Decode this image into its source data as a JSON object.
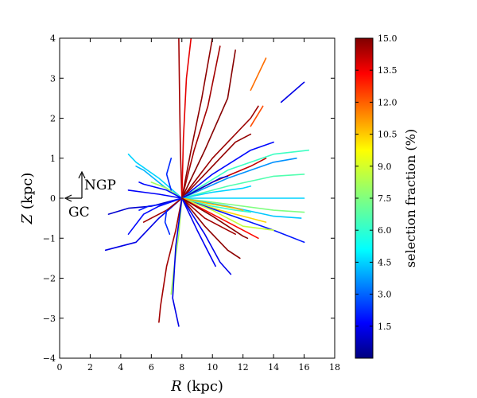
{
  "chart_data": {
    "type": "line",
    "title": "",
    "xlabel_italic": "R",
    "xlabel_unit": " (kpc)",
    "ylabel_italic": "Z",
    "ylabel_unit": " (kpc)",
    "xlim": [
      0,
      18
    ],
    "ylim": [
      -4,
      4
    ],
    "xticks": [
      "0",
      "2",
      "4",
      "6",
      "8",
      "10",
      "12",
      "14",
      "16",
      "18"
    ],
    "yticks": [
      "−4",
      "−3",
      "−2",
      "−1",
      "0",
      "1",
      "2",
      "3",
      "4"
    ],
    "sun_position": {
      "R": 8.0,
      "Z": 0.0
    },
    "annotations": {
      "north": "NGP",
      "center": "GC"
    },
    "colorbar": {
      "label": "selection fraction (%)",
      "min": 0.0,
      "max": 15.0,
      "ticks": [
        "1.5",
        "3.0",
        "4.5",
        "6.0",
        "7.5",
        "9.0",
        "10.5",
        "12.0",
        "13.5",
        "15.0"
      ]
    },
    "series": [
      {
        "name": "sightline-01",
        "selection_fraction": 14.5,
        "points": [
          [
            8.0,
            0.0
          ],
          [
            7.9,
            1.2
          ],
          [
            7.85,
            2.5
          ],
          [
            7.8,
            4.0
          ]
        ]
      },
      {
        "name": "sightline-02",
        "selection_fraction": 13.5,
        "points": [
          [
            8.0,
            0.0
          ],
          [
            8.1,
            1.5
          ],
          [
            8.3,
            3.0
          ],
          [
            8.6,
            4.0
          ]
        ]
      },
      {
        "name": "sightline-03",
        "selection_fraction": 14.8,
        "points": [
          [
            8.0,
            0.0
          ],
          [
            8.6,
            1.2
          ],
          [
            9.3,
            2.5
          ],
          [
            10.0,
            4.0
          ]
        ]
      },
      {
        "name": "sightline-04",
        "selection_fraction": 14.5,
        "points": [
          [
            8.0,
            0.0
          ],
          [
            8.8,
            1.2
          ],
          [
            9.7,
            2.3
          ],
          [
            10.5,
            3.8
          ]
        ]
      },
      {
        "name": "sightline-05",
        "selection_fraction": 14.9,
        "points": [
          [
            8.0,
            0.0
          ],
          [
            9.5,
            1.2
          ],
          [
            11.0,
            2.5
          ],
          [
            11.5,
            3.7
          ]
        ]
      },
      {
        "name": "sightline-06",
        "selection_fraction": 14.6,
        "points": [
          [
            8.0,
            0.0
          ],
          [
            10.0,
            1.0
          ],
          [
            12.5,
            2.0
          ],
          [
            13.0,
            2.3
          ]
        ]
      },
      {
        "name": "sightline-07",
        "selection_fraction": 11.5,
        "points": [
          [
            12.5,
            2.7
          ],
          [
            13.5,
            3.5
          ]
        ]
      },
      {
        "name": "sightline-08",
        "selection_fraction": 12.0,
        "points": [
          [
            12.5,
            1.8
          ],
          [
            13.3,
            2.3
          ]
        ]
      },
      {
        "name": "sightline-09",
        "selection_fraction": 1.5,
        "points": [
          [
            14.5,
            2.4
          ],
          [
            16.0,
            2.9
          ]
        ]
      },
      {
        "name": "sightline-10",
        "selection_fraction": 14.7,
        "points": [
          [
            8.0,
            0.0
          ],
          [
            9.5,
            0.6
          ],
          [
            11.5,
            1.4
          ],
          [
            12.5,
            1.6
          ]
        ]
      },
      {
        "name": "sightline-11",
        "selection_fraction": 2.0,
        "points": [
          [
            8.0,
            0.0
          ],
          [
            10.0,
            0.6
          ],
          [
            12.5,
            1.2
          ],
          [
            14.0,
            1.4
          ]
        ]
      },
      {
        "name": "sightline-12",
        "selection_fraction": 6.5,
        "points": [
          [
            8.0,
            0.0
          ],
          [
            11.0,
            0.7
          ],
          [
            14.0,
            1.1
          ],
          [
            16.3,
            1.2
          ]
        ]
      },
      {
        "name": "sightline-13",
        "selection_fraction": 4.0,
        "points": [
          [
            8.0,
            0.0
          ],
          [
            11.0,
            0.5
          ],
          [
            14.0,
            0.9
          ],
          [
            15.5,
            1.0
          ]
        ]
      },
      {
        "name": "sightline-14",
        "selection_fraction": 14.0,
        "points": [
          [
            8.0,
            0.0
          ],
          [
            10.0,
            0.4
          ],
          [
            12.5,
            0.8
          ],
          [
            13.5,
            1.0
          ]
        ]
      },
      {
        "name": "sightline-15",
        "selection_fraction": 6.8,
        "points": [
          [
            8.0,
            0.0
          ],
          [
            11.0,
            0.3
          ],
          [
            14.0,
            0.55
          ],
          [
            16.0,
            0.6
          ]
        ]
      },
      {
        "name": "sightline-16",
        "selection_fraction": 5.0,
        "points": [
          [
            8.0,
            0.0
          ],
          [
            10.0,
            0.15
          ],
          [
            12.0,
            0.25
          ],
          [
            12.5,
            0.3
          ]
        ]
      },
      {
        "name": "sightline-17",
        "selection_fraction": 5.0,
        "points": [
          [
            8.0,
            0.0
          ],
          [
            11.0,
            0.0
          ],
          [
            14.0,
            0.0
          ],
          [
            16.0,
            0.0
          ]
        ]
      },
      {
        "name": "sightline-18",
        "selection_fraction": 7.5,
        "points": [
          [
            8.0,
            0.0
          ],
          [
            11.0,
            -0.15
          ],
          [
            14.0,
            -0.3
          ],
          [
            16.0,
            -0.35
          ]
        ]
      },
      {
        "name": "sightline-19",
        "selection_fraction": 4.8,
        "points": [
          [
            8.0,
            0.0
          ],
          [
            11.0,
            -0.2
          ],
          [
            14.0,
            -0.45
          ],
          [
            15.8,
            -0.5
          ]
        ]
      },
      {
        "name": "sightline-20",
        "selection_fraction": 10.0,
        "points": [
          [
            8.0,
            0.0
          ],
          [
            10.5,
            -0.3
          ],
          [
            12.5,
            -0.5
          ],
          [
            13.5,
            -0.6
          ]
        ]
      },
      {
        "name": "sightline-21",
        "selection_fraction": 2.2,
        "points": [
          [
            8.0,
            0.0
          ],
          [
            11.0,
            -0.4
          ],
          [
            14.0,
            -0.8
          ],
          [
            16.0,
            -1.1
          ]
        ]
      },
      {
        "name": "sightline-22",
        "selection_fraction": 8.5,
        "points": [
          [
            8.0,
            0.0
          ],
          [
            10.0,
            -0.3
          ],
          [
            12.0,
            -0.7
          ],
          [
            14.0,
            -0.8
          ]
        ]
      },
      {
        "name": "sightline-23",
        "selection_fraction": 6.5,
        "points": [
          [
            8.0,
            0.0
          ],
          [
            10.0,
            -0.2
          ],
          [
            11.5,
            -0.3
          ],
          [
            12.5,
            -0.35
          ]
        ]
      },
      {
        "name": "sightline-24",
        "selection_fraction": 13.0,
        "points": [
          [
            8.0,
            0.0
          ],
          [
            10.0,
            -0.4
          ],
          [
            12.0,
            -0.8
          ],
          [
            13.0,
            -1.0
          ]
        ]
      },
      {
        "name": "sightline-25",
        "selection_fraction": 14.5,
        "points": [
          [
            8.0,
            0.0
          ],
          [
            9.5,
            -0.5
          ],
          [
            11.0,
            -0.8
          ],
          [
            11.5,
            -0.9
          ]
        ]
      },
      {
        "name": "sightline-26",
        "selection_fraction": 14.8,
        "points": [
          [
            8.0,
            0.0
          ],
          [
            9.5,
            -0.7
          ],
          [
            11.0,
            -1.3
          ],
          [
            11.8,
            -1.5
          ]
        ]
      },
      {
        "name": "sightline-27",
        "selection_fraction": 1.6,
        "points": [
          [
            8.0,
            0.0
          ],
          [
            9.5,
            -0.9
          ],
          [
            10.5,
            -1.6
          ],
          [
            11.2,
            -1.9
          ]
        ]
      },
      {
        "name": "sightline-28",
        "selection_fraction": 1.7,
        "points": [
          [
            8.0,
            0.0
          ],
          [
            9.0,
            -0.8
          ],
          [
            9.8,
            -1.4
          ],
          [
            10.2,
            -1.7
          ]
        ]
      },
      {
        "name": "sightline-29",
        "selection_fraction": 14.5,
        "points": [
          [
            8.0,
            0.0
          ],
          [
            7.6,
            -0.8
          ],
          [
            7.0,
            -1.7
          ],
          [
            6.6,
            -2.7
          ],
          [
            6.5,
            -3.1
          ]
        ]
      },
      {
        "name": "sightline-30",
        "selection_fraction": 8.0,
        "points": [
          [
            8.0,
            0.0
          ],
          [
            7.8,
            -0.9
          ],
          [
            7.5,
            -1.7
          ],
          [
            7.3,
            -2.4
          ]
        ]
      },
      {
        "name": "sightline-31",
        "selection_fraction": 1.5,
        "points": [
          [
            8.0,
            0.0
          ],
          [
            7.6,
            -1.2
          ],
          [
            7.4,
            -2.5
          ],
          [
            7.8,
            -3.2
          ]
        ]
      },
      {
        "name": "sightline-32",
        "selection_fraction": 1.5,
        "points": [
          [
            8.0,
            0.0
          ],
          [
            6.5,
            -0.5
          ],
          [
            5.0,
            -1.1
          ],
          [
            3.0,
            -1.3
          ]
        ]
      },
      {
        "name": "sightline-33",
        "selection_fraction": 2.0,
        "points": [
          [
            8.0,
            0.0
          ],
          [
            6.5,
            -0.2
          ],
          [
            5.5,
            -0.4
          ],
          [
            4.5,
            -0.9
          ]
        ]
      },
      {
        "name": "sightline-34",
        "selection_fraction": 1.2,
        "points": [
          [
            8.0,
            0.0
          ],
          [
            6.0,
            -0.2
          ],
          [
            4.5,
            -0.25
          ],
          [
            3.2,
            -0.4
          ]
        ]
      },
      {
        "name": "sightline-35",
        "selection_fraction": 14.5,
        "points": [
          [
            8.0,
            0.0
          ],
          [
            7.0,
            -0.3
          ],
          [
            6.0,
            -0.5
          ],
          [
            5.5,
            -0.6
          ]
        ]
      },
      {
        "name": "sightline-36",
        "selection_fraction": 1.8,
        "points": [
          [
            8.0,
            0.0
          ],
          [
            6.5,
            0.1
          ],
          [
            5.5,
            0.15
          ],
          [
            4.5,
            0.2
          ]
        ]
      },
      {
        "name": "sightline-37",
        "selection_fraction": 5.0,
        "points": [
          [
            8.0,
            0.0
          ],
          [
            6.5,
            0.5
          ],
          [
            5.0,
            0.9
          ],
          [
            4.5,
            1.1
          ]
        ]
      },
      {
        "name": "sightline-38",
        "selection_fraction": 4.5,
        "points": [
          [
            8.0,
            0.0
          ],
          [
            6.8,
            0.3
          ],
          [
            5.5,
            0.7
          ],
          [
            5.0,
            0.8
          ]
        ]
      },
      {
        "name": "sightline-39",
        "selection_fraction": 8.0,
        "points": [
          [
            8.0,
            0.0
          ],
          [
            7.0,
            0.25
          ],
          [
            6.0,
            0.4
          ]
        ]
      },
      {
        "name": "sightline-40",
        "selection_fraction": 2.0,
        "points": [
          [
            8.0,
            0.0
          ],
          [
            7.0,
            0.2
          ],
          [
            5.5,
            0.35
          ],
          [
            5.2,
            0.4
          ]
        ]
      },
      {
        "name": "sightline-41",
        "selection_fraction": 2.2,
        "points": [
          [
            8.0,
            0.0
          ],
          [
            6.8,
            -0.15
          ],
          [
            5.8,
            -0.2
          ],
          [
            5.2,
            -0.3
          ]
        ]
      },
      {
        "name": "sightline-42",
        "selection_fraction": 2.5,
        "points": [
          [
            7.3,
            1.0
          ],
          [
            7.0,
            0.6
          ],
          [
            7.3,
            0.2
          ]
        ]
      },
      {
        "name": "sightline-43",
        "selection_fraction": 2.5,
        "points": [
          [
            7.0,
            -0.3
          ],
          [
            6.9,
            -0.6
          ],
          [
            7.2,
            -0.9
          ]
        ]
      },
      {
        "name": "sightline-44",
        "selection_fraction": 1.2,
        "points": [
          [
            8.0,
            0.0
          ],
          [
            9.5,
            0.3
          ],
          [
            10.5,
            0.5
          ],
          [
            11.0,
            0.55
          ]
        ]
      },
      {
        "name": "sightline-45",
        "selection_fraction": 10.5,
        "points": [
          [
            8.0,
            0.0
          ],
          [
            10.0,
            -0.15
          ],
          [
            11.5,
            -0.25
          ],
          [
            12.0,
            -0.3
          ]
        ]
      },
      {
        "name": "sightline-46",
        "selection_fraction": 14.9,
        "points": [
          [
            8.0,
            0.0
          ],
          [
            10.0,
            -0.45
          ],
          [
            12.0,
            -0.95
          ],
          [
            12.3,
            -1.0
          ]
        ]
      }
    ]
  }
}
